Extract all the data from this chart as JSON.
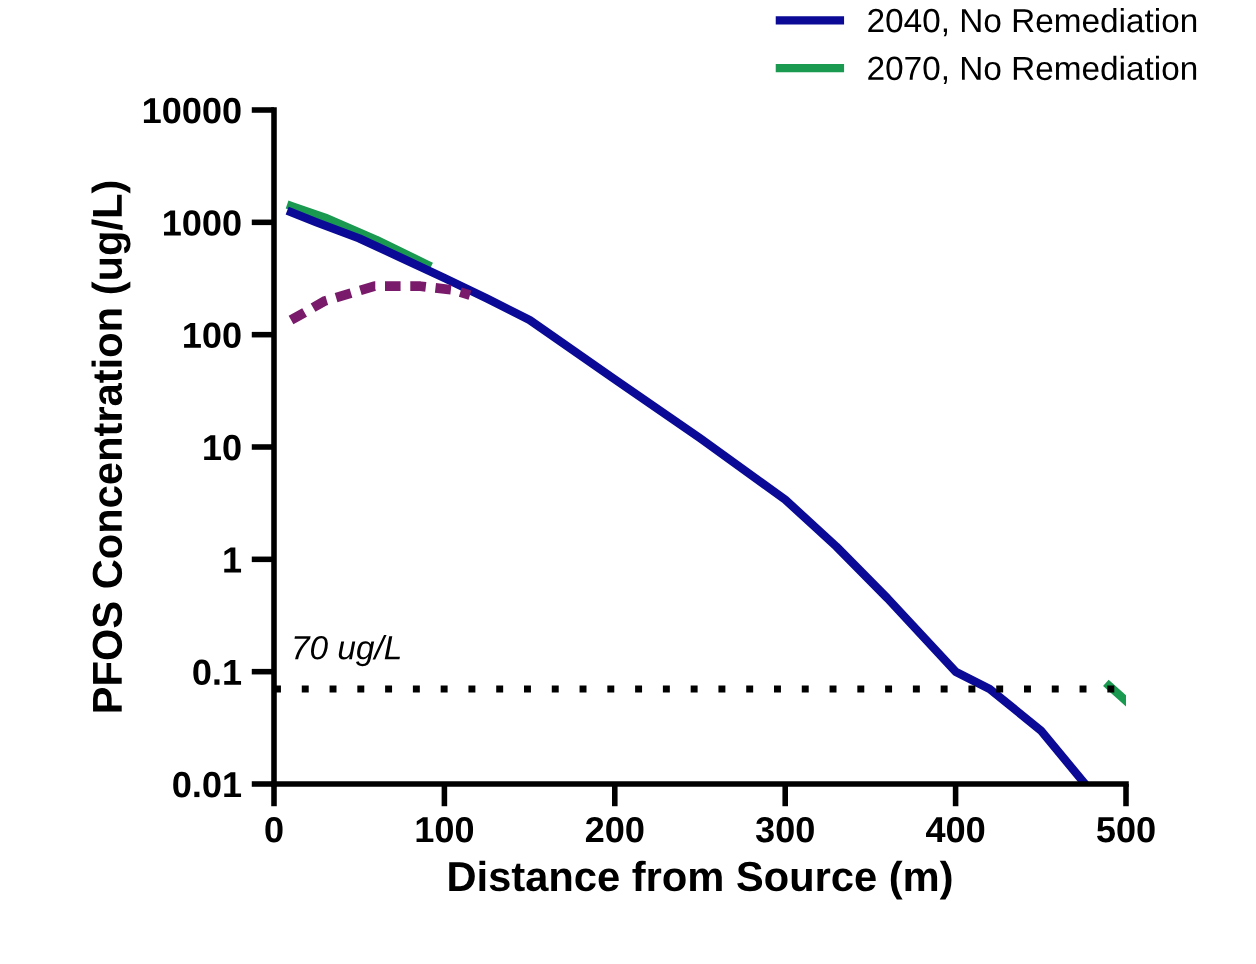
{
  "chart_data": {
    "type": "line",
    "xlabel": "Distance from Source (m)",
    "ylabel": "PFOS Concentration (ug/L)",
    "log": "y",
    "xlim": [
      0,
      500
    ],
    "xticks": [
      0,
      100,
      200,
      300,
      400,
      500
    ],
    "ylim": [
      0.01,
      10000
    ],
    "yticks": [
      {
        "value": 0.01,
        "label": "0.01"
      },
      {
        "value": 0.1,
        "label": "0.1"
      },
      1,
      10,
      100,
      1000,
      10000
    ],
    "grid": false,
    "legend": "top right",
    "line_style": "solid",
    "marker": "none",
    "series": [
      {
        "name": "2070, No Remediation",
        "color": "#1a9a50",
        "x": [
          10,
          30,
          60,
          90,
          300,
          490,
          500
        ],
        "values": [
          1400,
          1100,
          700,
          420,
          null,
          0.075,
          0.055
        ]
      },
      {
        "name": "2040, No Remediation",
        "color": "#0a0a96",
        "x": [
          10,
          25,
          50,
          75,
          100,
          125,
          150,
          200,
          250,
          300,
          330,
          360,
          400,
          420,
          450,
          476
        ],
        "values": [
          1230,
          1000,
          720,
          480,
          320,
          210,
          135,
          40,
          12,
          3.4,
          1.3,
          0.45,
          0.1,
          0.07,
          0.03,
          0.01
        ]
      },
      {
        "color": "#7a1a6a",
        "line_style": "dashed",
        "x": [
          10,
          30,
          59,
          86,
          105,
          115
        ],
        "values": [
          135,
          200,
          270,
          270,
          250,
          225
        ]
      }
    ],
    "ref_lines": [
      {
        "axis": "y",
        "value": 0.07,
        "label": "70 ug/L",
        "color": "#000000",
        "line_style": "dotted"
      }
    ]
  }
}
